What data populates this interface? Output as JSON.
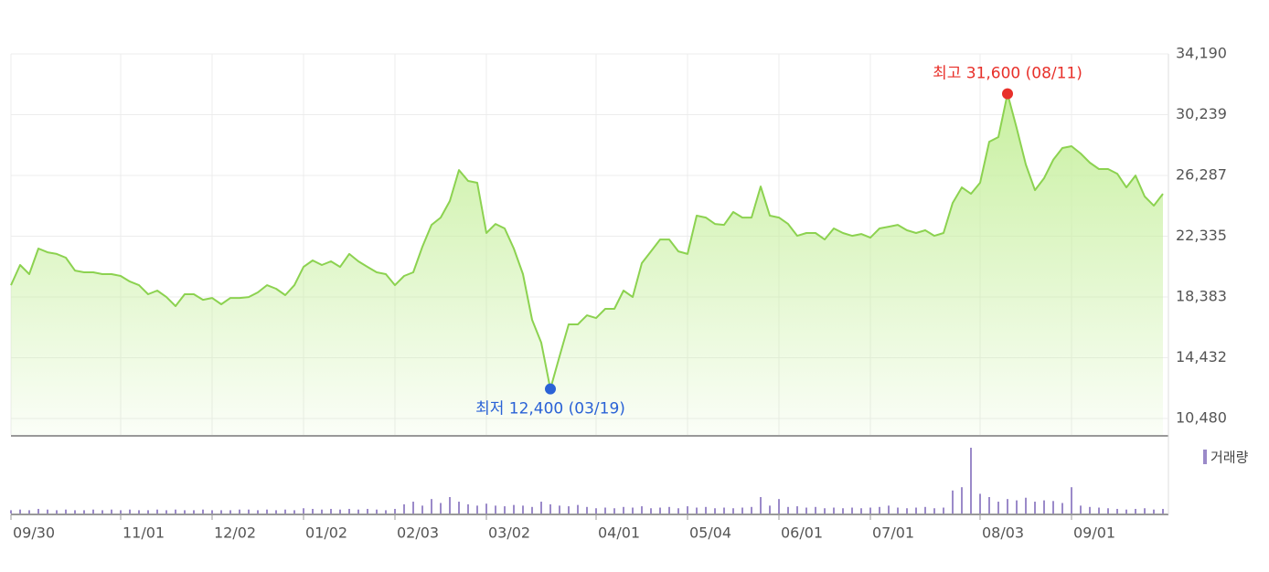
{
  "chart_data": {
    "type": "line",
    "color": "#8cd250",
    "fill": "#c8f0a0",
    "grid": true,
    "categories": [
      "09/30",
      null,
      null,
      null,
      null,
      null,
      null,
      null,
      null,
      null,
      null,
      null,
      "11/01",
      null,
      null,
      null,
      null,
      null,
      null,
      null,
      null,
      null,
      "12/02",
      null,
      null,
      null,
      null,
      null,
      null,
      null,
      null,
      null,
      "01/02",
      null,
      null,
      null,
      null,
      null,
      null,
      null,
      null,
      null,
      "02/03",
      null,
      null,
      null,
      null,
      null,
      null,
      null,
      null,
      null,
      "03/02",
      null,
      null,
      null,
      null,
      null,
      null,
      null,
      null,
      null,
      null,
      null,
      "04/01",
      null,
      null,
      null,
      null,
      null,
      null,
      null,
      null,
      null,
      "05/04",
      null,
      null,
      null,
      null,
      null,
      null,
      null,
      null,
      null,
      "06/01",
      null,
      null,
      null,
      null,
      null,
      null,
      null,
      null,
      null,
      "07/01",
      null,
      null,
      null,
      null,
      null,
      null,
      null,
      null,
      null,
      null,
      null,
      "08/03",
      null,
      null,
      null,
      null,
      null,
      null,
      null,
      null,
      null,
      "09/01",
      null,
      null,
      null,
      null,
      null,
      null,
      null,
      null,
      null,
      null
    ],
    "values": [
      19150,
      20460,
      19870,
      21530,
      21290,
      21180,
      20940,
      20100,
      19990,
      19990,
      19870,
      19870,
      19750,
      19390,
      19150,
      18560,
      18800,
      18380,
      17790,
      18560,
      18560,
      18200,
      18320,
      17910,
      18320,
      18320,
      18380,
      18680,
      19150,
      18920,
      18500,
      19150,
      20340,
      20760,
      20460,
      20700,
      20340,
      21180,
      20700,
      20340,
      19990,
      19870,
      19150,
      19750,
      19990,
      21650,
      23070,
      23550,
      24620,
      26640,
      25930,
      25810,
      22540,
      23130,
      22840,
      21530,
      19870,
      16900,
      15410,
      12400,
      14520,
      16600,
      16600,
      17190,
      17010,
      17610,
      17610,
      18800,
      18380,
      20580,
      21350,
      22120,
      22120,
      21350,
      21180,
      23670,
      23550,
      23130,
      23070,
      23910,
      23550,
      23550,
      25570,
      23670,
      23550,
      23130,
      22360,
      22540,
      22540,
      22120,
      22840,
      22540,
      22360,
      22480,
      22240,
      22840,
      22950,
      23070,
      22720,
      22540,
      22720,
      22360,
      22540,
      24500,
      25510,
      25090,
      25810,
      28480,
      28780,
      31600,
      29370,
      27000,
      25330,
      26110,
      27300,
      28070,
      28190,
      27710,
      27120,
      26700,
      26700,
      26400,
      25510,
      26280,
      24920,
      24320,
      25090
    ],
    "ylim": [
      9410,
      34190
    ],
    "yticks": [
      {
        "value": 10480,
        "label": "10,480"
      },
      {
        "value": 14432,
        "label": "14,432"
      },
      {
        "value": 18383,
        "label": "18,383"
      },
      {
        "value": 22335,
        "label": "22,335"
      },
      {
        "value": 26287,
        "label": "26,287"
      },
      {
        "value": 30239,
        "label": "30,239"
      },
      {
        "value": 34190,
        "label": "34,190"
      }
    ],
    "annotations": [
      {
        "text": "최고 31,600 (08/11)",
        "value": 31600,
        "color": "#e8302a"
      },
      {
        "text": "최저 12,400 (03/19)",
        "value": 12400,
        "color": "#2a62d6"
      }
    ],
    "volume": {
      "name": "거래량",
      "color": "#9b8ac9",
      "values": [
        5,
        6,
        5,
        7,
        6,
        5,
        6,
        5,
        5,
        6,
        5,
        6,
        5,
        6,
        5,
        5,
        6,
        5,
        6,
        5,
        5,
        6,
        5,
        5,
        5,
        6,
        6,
        5,
        6,
        5,
        6,
        5,
        8,
        7,
        6,
        7,
        6,
        7,
        6,
        7,
        6,
        5,
        7,
        14,
        18,
        12,
        22,
        16,
        25,
        18,
        14,
        12,
        15,
        12,
        11,
        13,
        12,
        10,
        18,
        14,
        12,
        11,
        13,
        10,
        8,
        9,
        8,
        10,
        9,
        11,
        8,
        9,
        10,
        8,
        11,
        9,
        10,
        8,
        9,
        8,
        9,
        10,
        25,
        12,
        22,
        10,
        11,
        9,
        10,
        8,
        9,
        8,
        9,
        8,
        9,
        10,
        12,
        9,
        8,
        9,
        10,
        8,
        9,
        35,
        40,
        100,
        30,
        25,
        18,
        22,
        20,
        24,
        18,
        20,
        19,
        16,
        40,
        12,
        10,
        9,
        8,
        7,
        6,
        7,
        8,
        6,
        7
      ]
    }
  }
}
